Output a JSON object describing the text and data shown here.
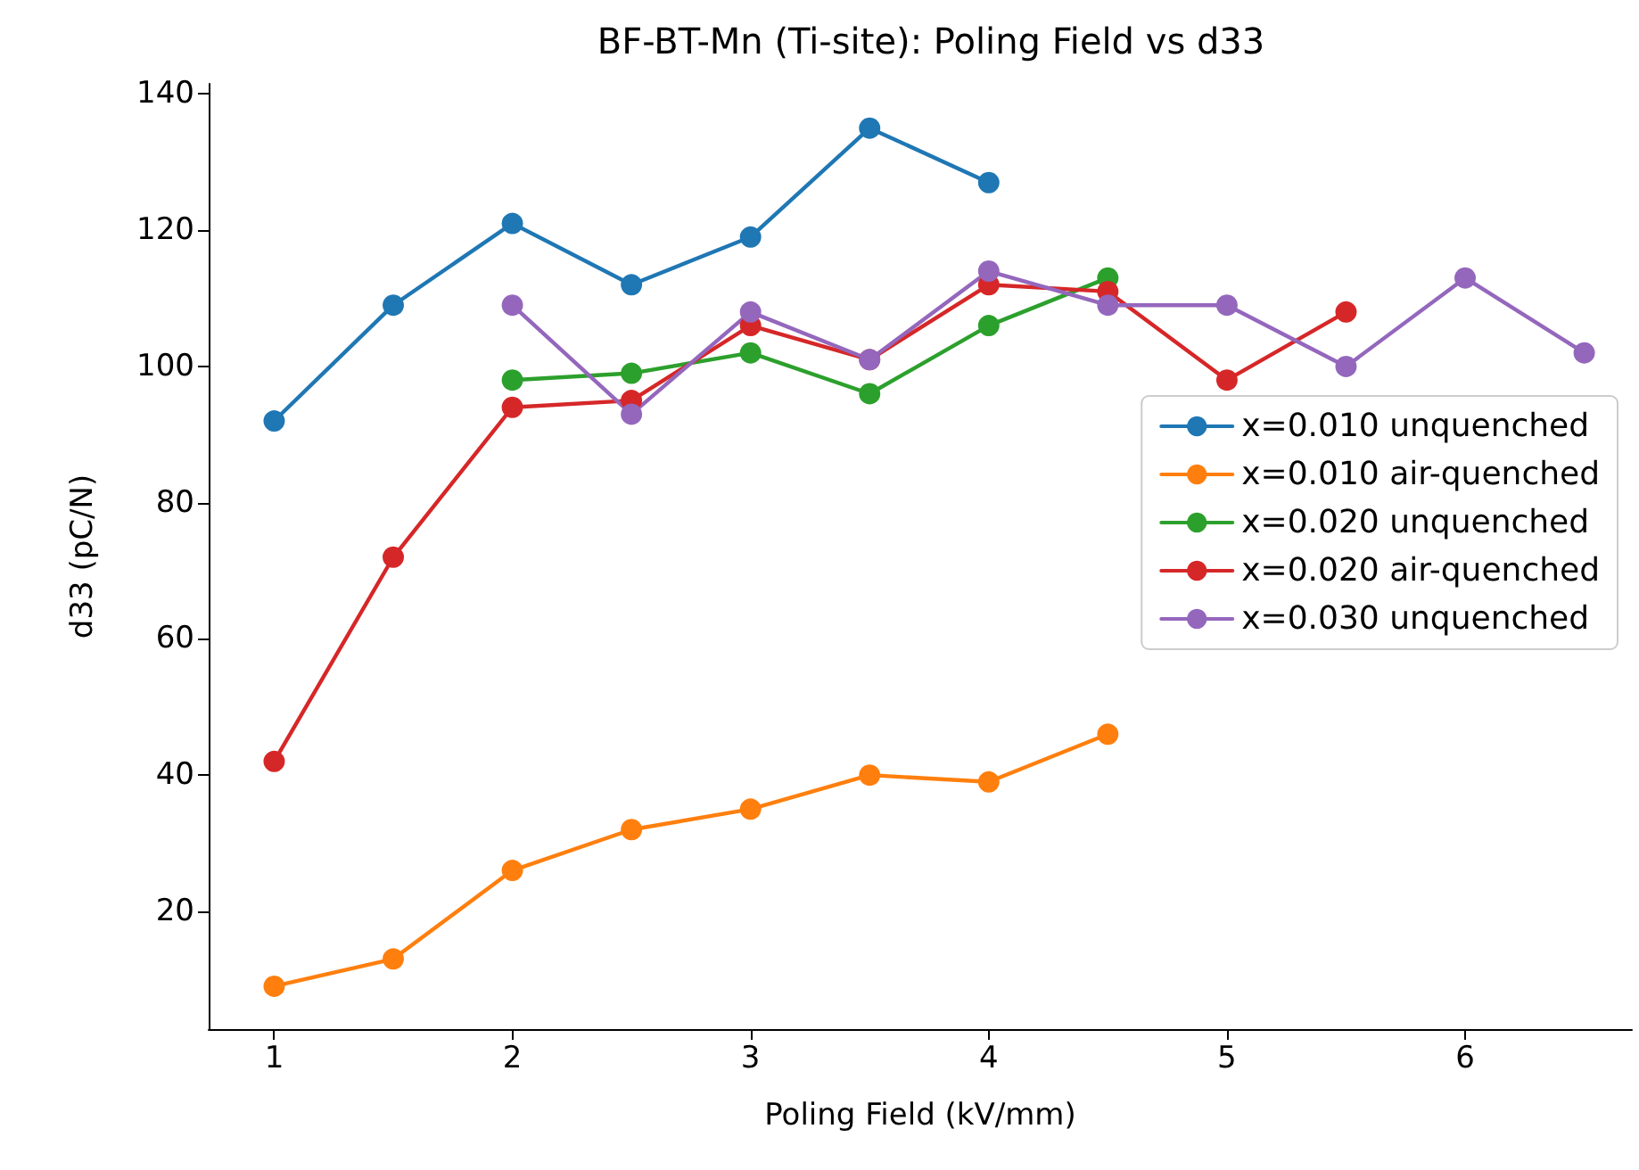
{
  "chart_data": {
    "type": "line",
    "title": "BF-BT-Mn (Ti-site): Poling Field vs d33",
    "xlabel": "Poling Field (kV/mm)",
    "ylabel": "d33 (pC/N)",
    "xlim": [
      0.725,
      6.7
    ],
    "xticks": [
      1,
      2,
      3,
      4,
      5,
      6
    ],
    "ylim": [
      2.7,
      141.5
    ],
    "yticks": [
      20,
      40,
      60,
      80,
      100,
      120,
      140
    ],
    "grid": false,
    "legend": "right",
    "marker": "circle",
    "line_style": "solid",
    "series": [
      {
        "name": "x=0.010 unquenched",
        "color": "#1f77b4",
        "x": [
          1,
          1.5,
          2,
          2.5,
          3,
          3.5,
          4
        ],
        "values": [
          92,
          109,
          121,
          112,
          119,
          135,
          127
        ]
      },
      {
        "name": "x=0.010 air-quenched",
        "color": "#ff7f0e",
        "x": [
          1,
          1.5,
          2,
          2.5,
          3,
          3.5,
          4,
          4.5
        ],
        "values": [
          9,
          13,
          26,
          32,
          35,
          40,
          39,
          46
        ]
      },
      {
        "name": "x=0.020 unquenched",
        "color": "#2ca02c",
        "x": [
          2,
          2.5,
          3,
          3.5,
          4,
          4.5
        ],
        "values": [
          98,
          99,
          102,
          96,
          106,
          113
        ]
      },
      {
        "name": "x=0.020 air-quenched",
        "color": "#d62728",
        "x": [
          1,
          1.5,
          2,
          2.5,
          3,
          3.5,
          4,
          4.5,
          5,
          5.5
        ],
        "values": [
          42,
          72,
          94,
          95,
          106,
          101,
          112,
          111,
          98,
          108
        ]
      },
      {
        "name": "x=0.030 unquenched",
        "color": "#9467bd",
        "x": [
          2,
          2.5,
          3,
          3.5,
          4,
          4.5,
          5,
          5.5,
          6,
          6.5
        ],
        "values": [
          109,
          93,
          108,
          101,
          114,
          109,
          109,
          100,
          113,
          102
        ]
      }
    ]
  }
}
